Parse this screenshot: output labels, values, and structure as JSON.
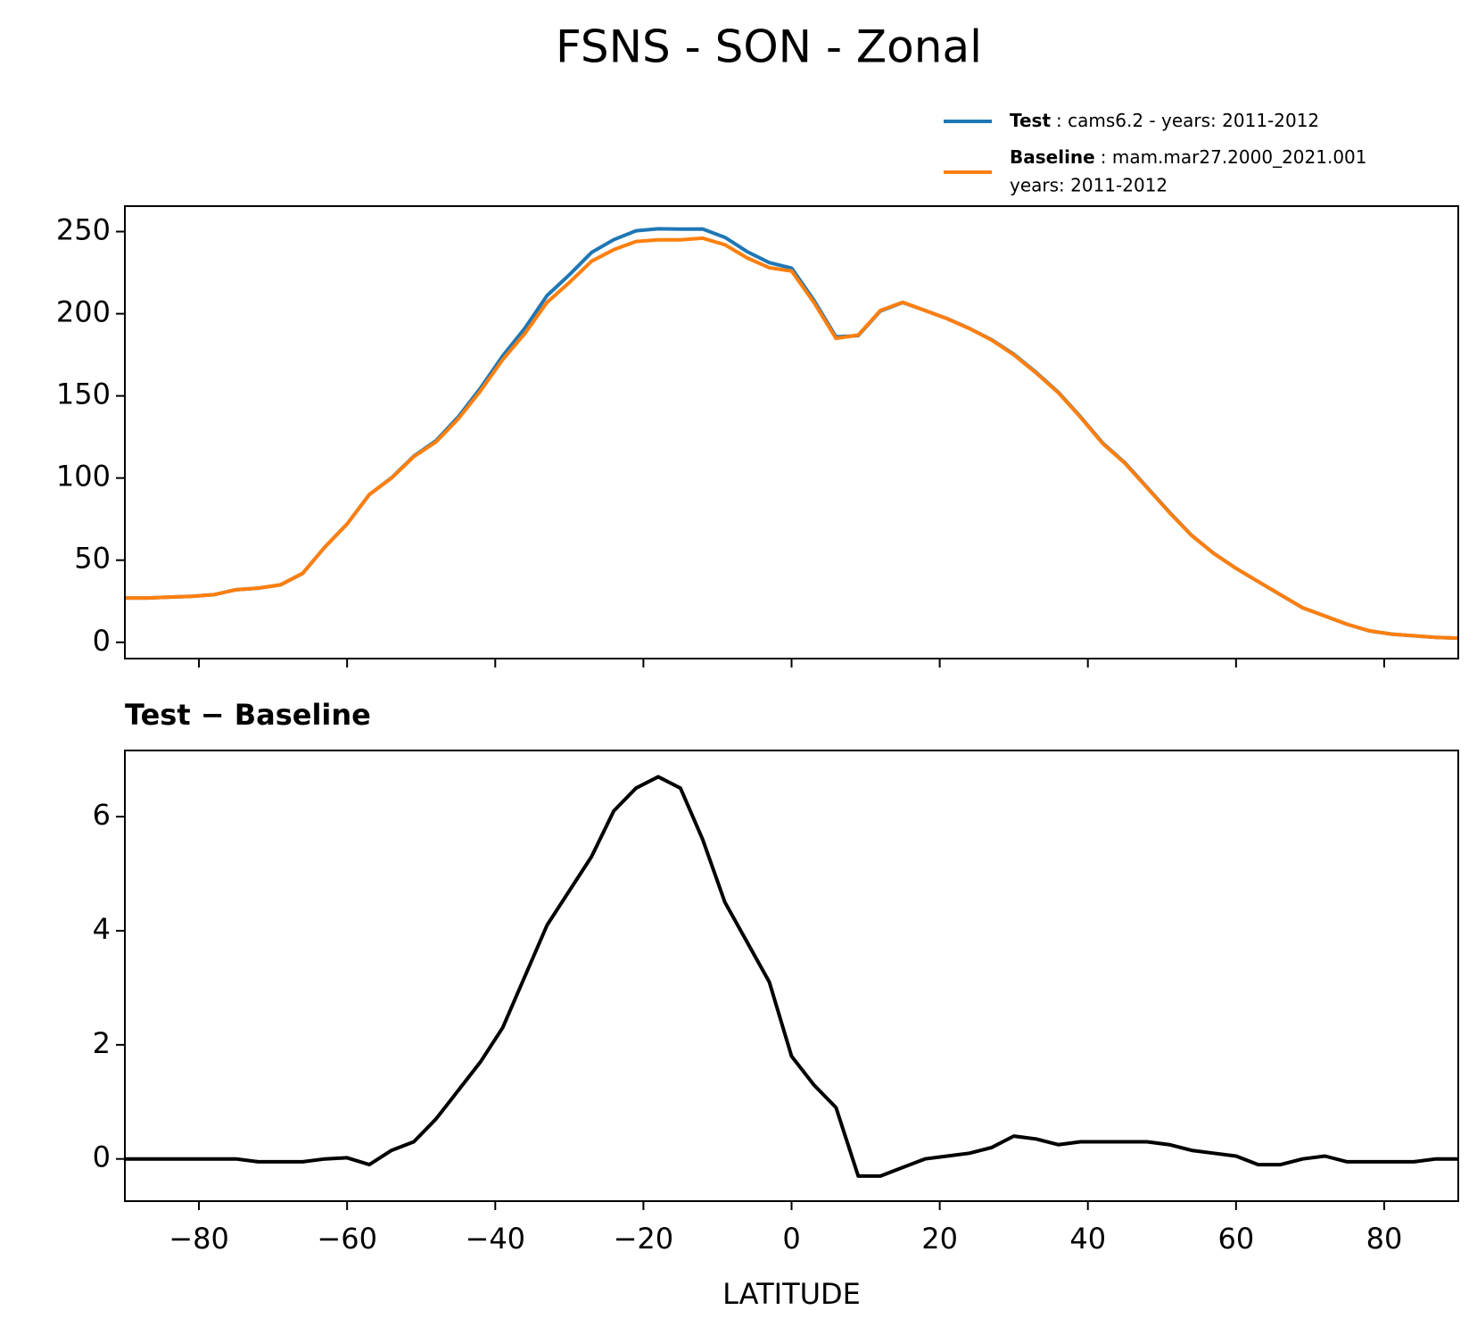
{
  "title": "FSNS - SON - Zonal",
  "chart_data": [
    {
      "type": "line",
      "x": [
        -90,
        -87,
        -84,
        -81,
        -78,
        -75,
        -72,
        -69,
        -66,
        -63,
        -60,
        -57,
        -54,
        -51,
        -48,
        -45,
        -42,
        -39,
        -36,
        -33,
        -30,
        -27,
        -24,
        -21,
        -18,
        -15,
        -12,
        -9,
        -6,
        -3,
        0,
        3,
        6,
        9,
        12,
        15,
        18,
        21,
        24,
        27,
        30,
        33,
        36,
        39,
        42,
        45,
        48,
        51,
        54,
        57,
        60,
        63,
        66,
        69,
        72,
        75,
        78,
        81,
        84,
        87,
        90
      ],
      "series": [
        {
          "name": "Test",
          "description": [
            ": cams6.2 - years: 2011-2012"
          ],
          "color": "#1f77b4",
          "values": [
            27,
            27,
            27.5,
            28,
            29,
            32,
            32.95,
            34.95,
            41.95,
            58,
            72.02,
            89.9,
            100.15,
            113.3,
            122.7,
            137.2,
            154.7,
            174.3,
            191.2,
            211.1,
            223.7,
            237.3,
            245.1,
            250.5,
            251.7,
            251.5,
            251.6,
            246.5,
            237.8,
            231.1,
            227.8,
            208.3,
            185.9,
            186.7,
            201.7,
            206.85,
            202,
            197.05,
            191.1,
            184.2,
            175.4,
            164.35,
            152.25,
            137.3,
            121.3,
            109.3,
            94.3,
            79.25,
            65.15,
            54.1,
            45.05,
            36.9,
            28.9,
            21,
            16.05,
            10.95,
            6.95,
            4.95,
            3.95,
            3,
            2.5
          ]
        },
        {
          "name": "Baseline",
          "description": [
            ": mam.mar27.2000_2021.001",
            "years: 2011-2012"
          ],
          "color": "#ff7f0e",
          "values": [
            27,
            27,
            27.5,
            28,
            29,
            32,
            33,
            35,
            42,
            58,
            72,
            90,
            100,
            113,
            122,
            136,
            153,
            172,
            188,
            207,
            219,
            232,
            239,
            244,
            245,
            245,
            246,
            242,
            234,
            228,
            226,
            207,
            185,
            187,
            202,
            207,
            202,
            197,
            191,
            184,
            175,
            164,
            152,
            137,
            121,
            109,
            94,
            79,
            65,
            54,
            45,
            37,
            29,
            21,
            16,
            11,
            7,
            5,
            4,
            3,
            2.5
          ]
        }
      ],
      "xlim": [
        -90,
        90
      ],
      "xticks": [
        -80,
        -60,
        -40,
        -20,
        0,
        20,
        40,
        60,
        80
      ],
      "ylim": [
        -9.9,
        265.5
      ],
      "yticks": [
        0,
        50,
        100,
        150,
        200,
        250
      ]
    },
    {
      "type": "line",
      "title": "Test − Baseline",
      "xlabel": "LATITUDE",
      "x": [
        -90,
        -87,
        -84,
        -81,
        -78,
        -75,
        -72,
        -69,
        -66,
        -63,
        -60,
        -57,
        -54,
        -51,
        -48,
        -45,
        -42,
        -39,
        -36,
        -33,
        -30,
        -27,
        -24,
        -21,
        -18,
        -15,
        -12,
        -9,
        -6,
        -3,
        0,
        3,
        6,
        9,
        12,
        15,
        18,
        21,
        24,
        27,
        30,
        33,
        36,
        39,
        42,
        45,
        48,
        51,
        54,
        57,
        60,
        63,
        66,
        69,
        72,
        75,
        78,
        81,
        84,
        87,
        90
      ],
      "series": [
        {
          "color": "#000000",
          "values": [
            0,
            0,
            0,
            0,
            0,
            0,
            -0.05,
            -0.05,
            -0.05,
            0,
            0.02,
            -0.1,
            0.15,
            0.3,
            0.7,
            1.2,
            1.7,
            2.3,
            3.2,
            4.1,
            4.7,
            5.3,
            6.1,
            6.5,
            6.7,
            6.5,
            5.6,
            4.5,
            3.8,
            3.1,
            1.8,
            1.3,
            0.9,
            -0.3,
            -0.3,
            -0.15,
            0,
            0.05,
            0.1,
            0.2,
            0.4,
            0.35,
            0.25,
            0.3,
            0.3,
            0.3,
            0.3,
            0.25,
            0.15,
            0.1,
            0.05,
            -0.1,
            -0.1,
            0,
            0.05,
            -0.05,
            -0.05,
            -0.05,
            -0.05,
            0,
            0
          ]
        }
      ],
      "xlim": [
        -90,
        90
      ],
      "xticks": [
        {
          "value": -80,
          "label": "−80"
        },
        {
          "value": -60,
          "label": "−60"
        },
        {
          "value": -40,
          "label": "−40"
        },
        {
          "value": -20,
          "label": "−20"
        },
        0,
        20,
        40,
        60,
        80
      ],
      "ylim": [
        -0.74,
        7.16
      ],
      "yticks": [
        0,
        2,
        4,
        6
      ]
    }
  ]
}
